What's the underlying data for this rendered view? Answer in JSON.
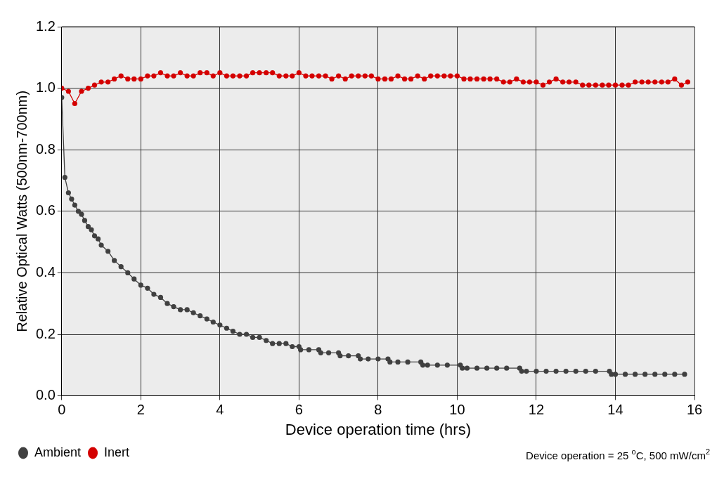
{
  "chart_data": {
    "type": "line",
    "xlabel": "Device operation time (hrs)",
    "ylabel": "Relative Optical Watts (500nm-700nm)",
    "annotations": [
      "Device operation = 25 $^{o}$C, 500 mW/cm$^{2}$"
    ],
    "xlim": [
      0,
      16
    ],
    "xticks": [
      0,
      2,
      4,
      6,
      8,
      10,
      12,
      14,
      16
    ],
    "ylim": [
      0,
      1.2
    ],
    "yticks": [
      {
        "value": 0,
        "label": "0.0"
      },
      {
        "value": 0.2,
        "label": "0.2"
      },
      {
        "value": 0.4,
        "label": "0.4"
      },
      {
        "value": 0.6,
        "label": "0.6"
      },
      {
        "value": 0.8,
        "label": "0.8"
      },
      {
        "value": 1,
        "label": "1.0"
      },
      {
        "value": 1.2,
        "label": "1.2"
      }
    ],
    "grid": true,
    "legend": "bottom left",
    "marker": "circle",
    "line_style": "solid",
    "series": [
      {
        "name": "Ambient",
        "color": "#404040",
        "x": [
          0,
          0.08,
          0.17,
          0.25,
          0.33,
          0.42,
          0.5,
          0.58,
          0.67,
          0.75,
          0.83,
          0.92,
          1.0,
          1.17,
          1.33,
          1.5,
          1.67,
          1.83,
          2.0,
          2.17,
          2.33,
          2.5,
          2.67,
          2.83,
          3.0,
          3.17,
          3.33,
          3.5,
          3.67,
          3.83,
          4.0,
          4.17,
          4.33,
          4.5,
          4.67,
          4.83,
          5.0,
          5.17,
          5.33,
          5.5,
          5.67,
          5.83,
          6.0,
          6.04,
          6.25,
          6.5,
          6.55,
          6.75,
          7.0,
          7.04,
          7.25,
          7.5,
          7.55,
          7.75,
          8.0,
          8.25,
          8.3,
          8.5,
          8.75,
          9.08,
          9.13,
          9.25,
          9.5,
          9.75,
          10.08,
          10.13,
          10.25,
          10.5,
          10.75,
          11.0,
          11.25,
          11.58,
          11.63,
          11.75,
          12.0,
          12.25,
          12.5,
          12.75,
          13.0,
          13.25,
          13.5,
          13.85,
          13.9,
          14.0,
          14.25,
          14.5,
          14.75,
          15.0,
          15.25,
          15.5,
          15.75
        ],
        "values": [
          0.97,
          0.71,
          0.66,
          0.64,
          0.62,
          0.6,
          0.59,
          0.57,
          0.55,
          0.54,
          0.52,
          0.51,
          0.49,
          0.47,
          0.44,
          0.42,
          0.4,
          0.38,
          0.36,
          0.35,
          0.33,
          0.32,
          0.3,
          0.29,
          0.28,
          0.28,
          0.27,
          0.26,
          0.25,
          0.24,
          0.23,
          0.22,
          0.21,
          0.2,
          0.2,
          0.19,
          0.19,
          0.18,
          0.17,
          0.17,
          0.17,
          0.16,
          0.16,
          0.15,
          0.15,
          0.15,
          0.14,
          0.14,
          0.14,
          0.13,
          0.13,
          0.13,
          0.12,
          0.12,
          0.12,
          0.12,
          0.11,
          0.11,
          0.11,
          0.11,
          0.1,
          0.1,
          0.1,
          0.1,
          0.1,
          0.09,
          0.09,
          0.09,
          0.09,
          0.09,
          0.09,
          0.09,
          0.08,
          0.08,
          0.08,
          0.08,
          0.08,
          0.08,
          0.08,
          0.08,
          0.08,
          0.08,
          0.07,
          0.07,
          0.07,
          0.07,
          0.07,
          0.07,
          0.07,
          0.07,
          0.07
        ]
      },
      {
        "name": "Inert",
        "color": "#d40000",
        "x": [
          0,
          0.17,
          0.33,
          0.5,
          0.67,
          0.83,
          1.0,
          1.17,
          1.33,
          1.5,
          1.67,
          1.83,
          2.0,
          2.17,
          2.33,
          2.5,
          2.67,
          2.83,
          3.0,
          3.17,
          3.33,
          3.5,
          3.67,
          3.83,
          4.0,
          4.17,
          4.33,
          4.5,
          4.67,
          4.83,
          5.0,
          5.17,
          5.33,
          5.5,
          5.67,
          5.83,
          6.0,
          6.17,
          6.33,
          6.5,
          6.67,
          6.83,
          7.0,
          7.17,
          7.33,
          7.5,
          7.67,
          7.83,
          8.0,
          8.17,
          8.33,
          8.5,
          8.67,
          8.83,
          9.0,
          9.17,
          9.33,
          9.5,
          9.67,
          9.83,
          10.0,
          10.17,
          10.33,
          10.5,
          10.67,
          10.83,
          11.0,
          11.17,
          11.33,
          11.5,
          11.67,
          11.83,
          12.0,
          12.17,
          12.33,
          12.5,
          12.67,
          12.83,
          13.0,
          13.17,
          13.33,
          13.5,
          13.67,
          13.83,
          14.0,
          14.17,
          14.33,
          14.5,
          14.67,
          14.83,
          15.0,
          15.17,
          15.33,
          15.5,
          15.67,
          15.83
        ],
        "values": [
          1.0,
          0.99,
          0.95,
          0.99,
          1.0,
          1.01,
          1.02,
          1.02,
          1.03,
          1.04,
          1.03,
          1.03,
          1.03,
          1.04,
          1.04,
          1.05,
          1.04,
          1.04,
          1.05,
          1.04,
          1.04,
          1.05,
          1.05,
          1.04,
          1.05,
          1.04,
          1.04,
          1.04,
          1.04,
          1.05,
          1.05,
          1.05,
          1.05,
          1.04,
          1.04,
          1.04,
          1.05,
          1.04,
          1.04,
          1.04,
          1.04,
          1.03,
          1.04,
          1.03,
          1.04,
          1.04,
          1.04,
          1.04,
          1.03,
          1.03,
          1.03,
          1.04,
          1.03,
          1.03,
          1.04,
          1.03,
          1.04,
          1.04,
          1.04,
          1.04,
          1.04,
          1.03,
          1.03,
          1.03,
          1.03,
          1.03,
          1.03,
          1.02,
          1.02,
          1.03,
          1.02,
          1.02,
          1.02,
          1.01,
          1.02,
          1.03,
          1.02,
          1.02,
          1.02,
          1.01,
          1.01,
          1.01,
          1.01,
          1.01,
          1.01,
          1.01,
          1.01,
          1.02,
          1.02,
          1.02,
          1.02,
          1.02,
          1.02,
          1.03,
          1.01,
          1.02
        ]
      }
    ]
  }
}
